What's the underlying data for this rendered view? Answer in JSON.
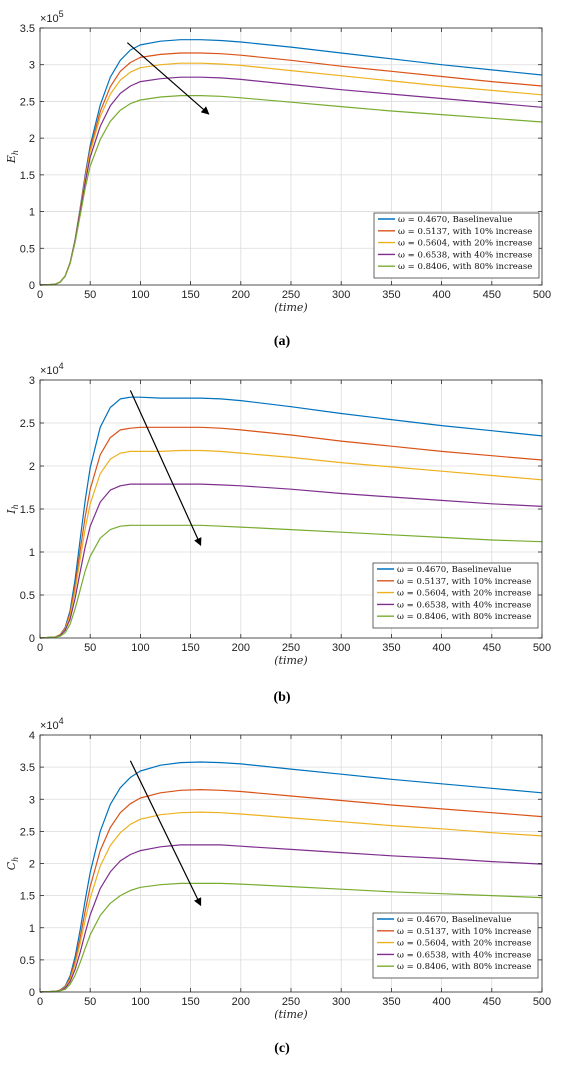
{
  "x_label": "(time)",
  "legend_labels": [
    "ω = 0.4670, Baselinevalue",
    "ω = 0.5137, with 10% increase",
    "ω = 0.5604, with 20% increase",
    "ω = 0.6538, with 40% increase",
    "ω = 0.8406, with 80% increase"
  ],
  "colors": [
    "#0072bd",
    "#d95319",
    "#edb120",
    "#7e2f8e",
    "#77ac30"
  ],
  "chart_data": [
    {
      "type": "line",
      "caption": "(a)",
      "ylabel": "E_h",
      "y_multiplier": "×10^5",
      "xlim": [
        0,
        500
      ],
      "ylim": [
        0,
        3.5
      ],
      "xticks": [
        0,
        50,
        100,
        150,
        200,
        250,
        300,
        350,
        400,
        450,
        500
      ],
      "yticks": [
        0,
        0.5,
        1,
        1.5,
        2,
        2.5,
        3,
        3.5
      ],
      "grid": true,
      "legend_position": "bottom-right",
      "arrow": {
        "from": [
          87,
          3.3
        ],
        "to": [
          168,
          2.33
        ]
      },
      "series": [
        {
          "name": "ω = 0.4670, Baselinevalue",
          "x": [
            0,
            15,
            20,
            25,
            30,
            35,
            40,
            45,
            50,
            60,
            70,
            80,
            90,
            100,
            120,
            140,
            160,
            180,
            200,
            250,
            300,
            350,
            400,
            450,
            500
          ],
          "y": [
            0,
            0.01,
            0.04,
            0.12,
            0.3,
            0.62,
            1.05,
            1.5,
            1.9,
            2.45,
            2.83,
            3.06,
            3.2,
            3.27,
            3.32,
            3.34,
            3.34,
            3.33,
            3.31,
            3.24,
            3.16,
            3.08,
            3.0,
            2.93,
            2.86
          ]
        },
        {
          "name": "ω = 0.5137, with 10% increase",
          "x": [
            0,
            15,
            20,
            25,
            30,
            35,
            40,
            45,
            50,
            60,
            70,
            80,
            90,
            100,
            120,
            140,
            160,
            180,
            200,
            250,
            300,
            350,
            400,
            450,
            500
          ],
          "y": [
            0,
            0.01,
            0.04,
            0.12,
            0.3,
            0.61,
            1.03,
            1.47,
            1.85,
            2.36,
            2.7,
            2.91,
            3.03,
            3.1,
            3.14,
            3.16,
            3.16,
            3.15,
            3.13,
            3.06,
            2.98,
            2.91,
            2.84,
            2.77,
            2.71
          ]
        },
        {
          "name": "ω = 0.5604, with 20% increase",
          "x": [
            0,
            15,
            20,
            25,
            30,
            35,
            40,
            45,
            50,
            60,
            70,
            80,
            90,
            100,
            120,
            140,
            160,
            180,
            200,
            250,
            300,
            350,
            400,
            450,
            500
          ],
          "y": [
            0,
            0.01,
            0.04,
            0.12,
            0.3,
            0.6,
            1.02,
            1.44,
            1.81,
            2.29,
            2.6,
            2.79,
            2.9,
            2.96,
            3.0,
            3.02,
            3.02,
            3.01,
            2.99,
            2.92,
            2.85,
            2.78,
            2.71,
            2.65,
            2.59
          ]
        },
        {
          "name": "ω = 0.6538, with 40% increase",
          "x": [
            0,
            15,
            20,
            25,
            30,
            35,
            40,
            45,
            50,
            60,
            70,
            80,
            90,
            100,
            120,
            140,
            160,
            180,
            200,
            250,
            300,
            350,
            400,
            450,
            500
          ],
          "y": [
            0,
            0.01,
            0.04,
            0.12,
            0.3,
            0.6,
            1.0,
            1.4,
            1.74,
            2.16,
            2.44,
            2.61,
            2.71,
            2.77,
            2.81,
            2.83,
            2.83,
            2.82,
            2.8,
            2.73,
            2.66,
            2.6,
            2.54,
            2.48,
            2.42
          ]
        },
        {
          "name": "ω = 0.8406, with 80% increase",
          "x": [
            0,
            15,
            20,
            25,
            30,
            35,
            40,
            45,
            50,
            60,
            70,
            80,
            90,
            100,
            120,
            140,
            160,
            180,
            200,
            250,
            300,
            350,
            400,
            450,
            500
          ],
          "y": [
            0,
            0.01,
            0.04,
            0.12,
            0.29,
            0.58,
            0.95,
            1.32,
            1.62,
            1.98,
            2.23,
            2.38,
            2.47,
            2.52,
            2.56,
            2.58,
            2.58,
            2.57,
            2.55,
            2.49,
            2.43,
            2.37,
            2.32,
            2.27,
            2.22
          ]
        }
      ]
    },
    {
      "type": "line",
      "caption": "(b)",
      "ylabel": "I_h",
      "y_multiplier": "×10^4",
      "xlim": [
        0,
        500
      ],
      "ylim": [
        0,
        3
      ],
      "xticks": [
        0,
        50,
        100,
        150,
        200,
        250,
        300,
        350,
        400,
        450,
        500
      ],
      "yticks": [
        0,
        0.5,
        1,
        1.5,
        2,
        2.5,
        3
      ],
      "grid": true,
      "legend_position": "bottom-right",
      "arrow": {
        "from": [
          90,
          2.88
        ],
        "to": [
          160,
          1.08
        ]
      },
      "series": [
        {
          "name": "ω = 0.4670, Baselinevalue",
          "x": [
            0,
            15,
            20,
            25,
            30,
            35,
            40,
            45,
            50,
            60,
            70,
            80,
            90,
            100,
            120,
            140,
            160,
            180,
            200,
            250,
            300,
            350,
            400,
            450,
            500
          ],
          "y": [
            0,
            0.01,
            0.04,
            0.12,
            0.32,
            0.68,
            1.15,
            1.6,
            1.98,
            2.45,
            2.68,
            2.78,
            2.8,
            2.8,
            2.79,
            2.79,
            2.79,
            2.78,
            2.76,
            2.69,
            2.61,
            2.54,
            2.47,
            2.41,
            2.35
          ]
        },
        {
          "name": "ω = 0.5137, with 10% increase",
          "x": [
            0,
            15,
            20,
            25,
            30,
            35,
            40,
            45,
            50,
            60,
            70,
            80,
            90,
            100,
            120,
            140,
            160,
            180,
            200,
            250,
            300,
            350,
            400,
            450,
            500
          ],
          "y": [
            0,
            0.01,
            0.04,
            0.11,
            0.29,
            0.61,
            1.02,
            1.41,
            1.73,
            2.13,
            2.33,
            2.42,
            2.44,
            2.45,
            2.45,
            2.45,
            2.45,
            2.44,
            2.42,
            2.36,
            2.29,
            2.23,
            2.17,
            2.12,
            2.07
          ]
        },
        {
          "name": "ω = 0.5604, with 20% increase",
          "x": [
            0,
            15,
            20,
            25,
            30,
            35,
            40,
            45,
            50,
            60,
            70,
            80,
            90,
            100,
            120,
            140,
            160,
            180,
            200,
            250,
            300,
            350,
            400,
            450,
            500
          ],
          "y": [
            0,
            0.01,
            0.04,
            0.1,
            0.26,
            0.55,
            0.92,
            1.27,
            1.56,
            1.91,
            2.08,
            2.15,
            2.17,
            2.17,
            2.17,
            2.18,
            2.18,
            2.17,
            2.15,
            2.1,
            2.04,
            1.99,
            1.94,
            1.89,
            1.84
          ]
        },
        {
          "name": "ω = 0.6538, with 40% increase",
          "x": [
            0,
            15,
            20,
            25,
            30,
            35,
            40,
            45,
            50,
            60,
            70,
            80,
            90,
            100,
            120,
            140,
            160,
            180,
            200,
            250,
            300,
            350,
            400,
            450,
            500
          ],
          "y": [
            0,
            0.01,
            0.03,
            0.09,
            0.22,
            0.46,
            0.77,
            1.06,
            1.3,
            1.58,
            1.72,
            1.77,
            1.79,
            1.79,
            1.79,
            1.79,
            1.79,
            1.78,
            1.77,
            1.73,
            1.68,
            1.64,
            1.6,
            1.56,
            1.53
          ]
        },
        {
          "name": "ω = 0.8406, with 80% increase",
          "x": [
            0,
            15,
            20,
            25,
            30,
            35,
            40,
            45,
            50,
            60,
            70,
            80,
            90,
            100,
            120,
            140,
            160,
            180,
            200,
            250,
            300,
            350,
            400,
            450,
            500
          ],
          "y": [
            0,
            0.01,
            0.02,
            0.06,
            0.16,
            0.34,
            0.56,
            0.78,
            0.95,
            1.16,
            1.26,
            1.3,
            1.31,
            1.31,
            1.31,
            1.31,
            1.31,
            1.3,
            1.29,
            1.26,
            1.23,
            1.2,
            1.17,
            1.14,
            1.12
          ]
        }
      ]
    },
    {
      "type": "line",
      "caption": "(c)",
      "ylabel": "C_h",
      "y_multiplier": "×10^4",
      "xlim": [
        0,
        500
      ],
      "ylim": [
        0,
        4
      ],
      "xticks": [
        0,
        50,
        100,
        150,
        200,
        250,
        300,
        350,
        400,
        450,
        500
      ],
      "yticks": [
        0,
        0.5,
        1,
        1.5,
        2,
        2.5,
        3,
        3.5,
        4
      ],
      "grid": true,
      "legend_position": "bottom-right",
      "arrow": {
        "from": [
          90,
          3.6
        ],
        "to": [
          160,
          1.35
        ]
      },
      "series": [
        {
          "name": "ω = 0.4670, Baselinevalue",
          "x": [
            0,
            15,
            20,
            25,
            30,
            35,
            40,
            45,
            50,
            60,
            70,
            80,
            90,
            100,
            120,
            140,
            160,
            180,
            200,
            250,
            300,
            350,
            400,
            450,
            500
          ],
          "y": [
            0,
            0.01,
            0.03,
            0.09,
            0.25,
            0.55,
            0.97,
            1.43,
            1.86,
            2.5,
            2.92,
            3.18,
            3.34,
            3.44,
            3.53,
            3.57,
            3.58,
            3.57,
            3.55,
            3.47,
            3.39,
            3.31,
            3.24,
            3.17,
            3.1
          ]
        },
        {
          "name": "ω = 0.5137, with 10% increase",
          "x": [
            0,
            15,
            20,
            25,
            30,
            35,
            40,
            45,
            50,
            60,
            70,
            80,
            90,
            100,
            120,
            140,
            160,
            180,
            200,
            250,
            300,
            350,
            400,
            450,
            500
          ],
          "y": [
            0,
            0.01,
            0.03,
            0.08,
            0.22,
            0.48,
            0.85,
            1.26,
            1.64,
            2.2,
            2.56,
            2.79,
            2.93,
            3.02,
            3.1,
            3.14,
            3.15,
            3.14,
            3.12,
            3.05,
            2.98,
            2.91,
            2.85,
            2.79,
            2.73
          ]
        },
        {
          "name": "ω = 0.5604, with 20% increase",
          "x": [
            0,
            15,
            20,
            25,
            30,
            35,
            40,
            45,
            50,
            60,
            70,
            80,
            90,
            100,
            120,
            140,
            160,
            180,
            200,
            250,
            300,
            350,
            400,
            450,
            500
          ],
          "y": [
            0,
            0.01,
            0.02,
            0.07,
            0.19,
            0.43,
            0.76,
            1.12,
            1.46,
            1.96,
            2.28,
            2.48,
            2.61,
            2.69,
            2.76,
            2.79,
            2.8,
            2.79,
            2.77,
            2.71,
            2.65,
            2.59,
            2.54,
            2.48,
            2.43
          ]
        },
        {
          "name": "ω = 0.6538, with 40% increase",
          "x": [
            0,
            15,
            20,
            25,
            30,
            35,
            40,
            45,
            50,
            60,
            70,
            80,
            90,
            100,
            120,
            140,
            160,
            180,
            200,
            250,
            300,
            350,
            400,
            450,
            500
          ],
          "y": [
            0,
            0.01,
            0.02,
            0.06,
            0.16,
            0.35,
            0.62,
            0.92,
            1.2,
            1.61,
            1.87,
            2.04,
            2.14,
            2.2,
            2.26,
            2.29,
            2.29,
            2.29,
            2.27,
            2.22,
            2.17,
            2.12,
            2.08,
            2.03,
            1.99
          ]
        },
        {
          "name": "ω = 0.8406, with 80% increase",
          "x": [
            0,
            15,
            20,
            25,
            30,
            35,
            40,
            45,
            50,
            60,
            70,
            80,
            90,
            100,
            120,
            140,
            160,
            180,
            200,
            250,
            300,
            350,
            400,
            450,
            500
          ],
          "y": [
            0,
            0.01,
            0.02,
            0.04,
            0.12,
            0.26,
            0.46,
            0.68,
            0.89,
            1.19,
            1.38,
            1.5,
            1.58,
            1.63,
            1.67,
            1.69,
            1.69,
            1.69,
            1.68,
            1.64,
            1.6,
            1.56,
            1.53,
            1.5,
            1.47
          ]
        }
      ]
    }
  ]
}
